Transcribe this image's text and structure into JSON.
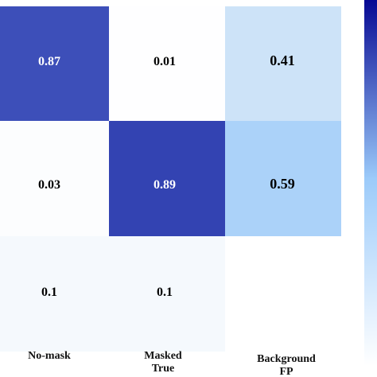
{
  "chart_data": {
    "type": "heatmap",
    "title": "",
    "xlabel": "",
    "ylabel": "",
    "x_categories": [
      "No-mask",
      "Masked\nTrue",
      "Background\nFP"
    ],
    "y_categories": [
      "",
      "",
      ""
    ],
    "values": [
      [
        0.87,
        0.01,
        0.41
      ],
      [
        0.03,
        0.89,
        0.59
      ],
      [
        0.1,
        0.1,
        null
      ]
    ],
    "value_labels": [
      [
        "0.87",
        "0.01",
        "0.41"
      ],
      [
        "0.03",
        "0.89",
        "0.59"
      ],
      [
        "0.1",
        "0.1",
        ""
      ]
    ],
    "vmin": 0,
    "vmax": 1,
    "colormap": [
      "#ffffff",
      "#dceaf7",
      "#9ccbfa",
      "#00008f"
    ],
    "colorbar_gradient": [
      "#00008f",
      "#9ccbfa",
      "#ffffff"
    ],
    "grid": false,
    "colorbar": true
  }
}
